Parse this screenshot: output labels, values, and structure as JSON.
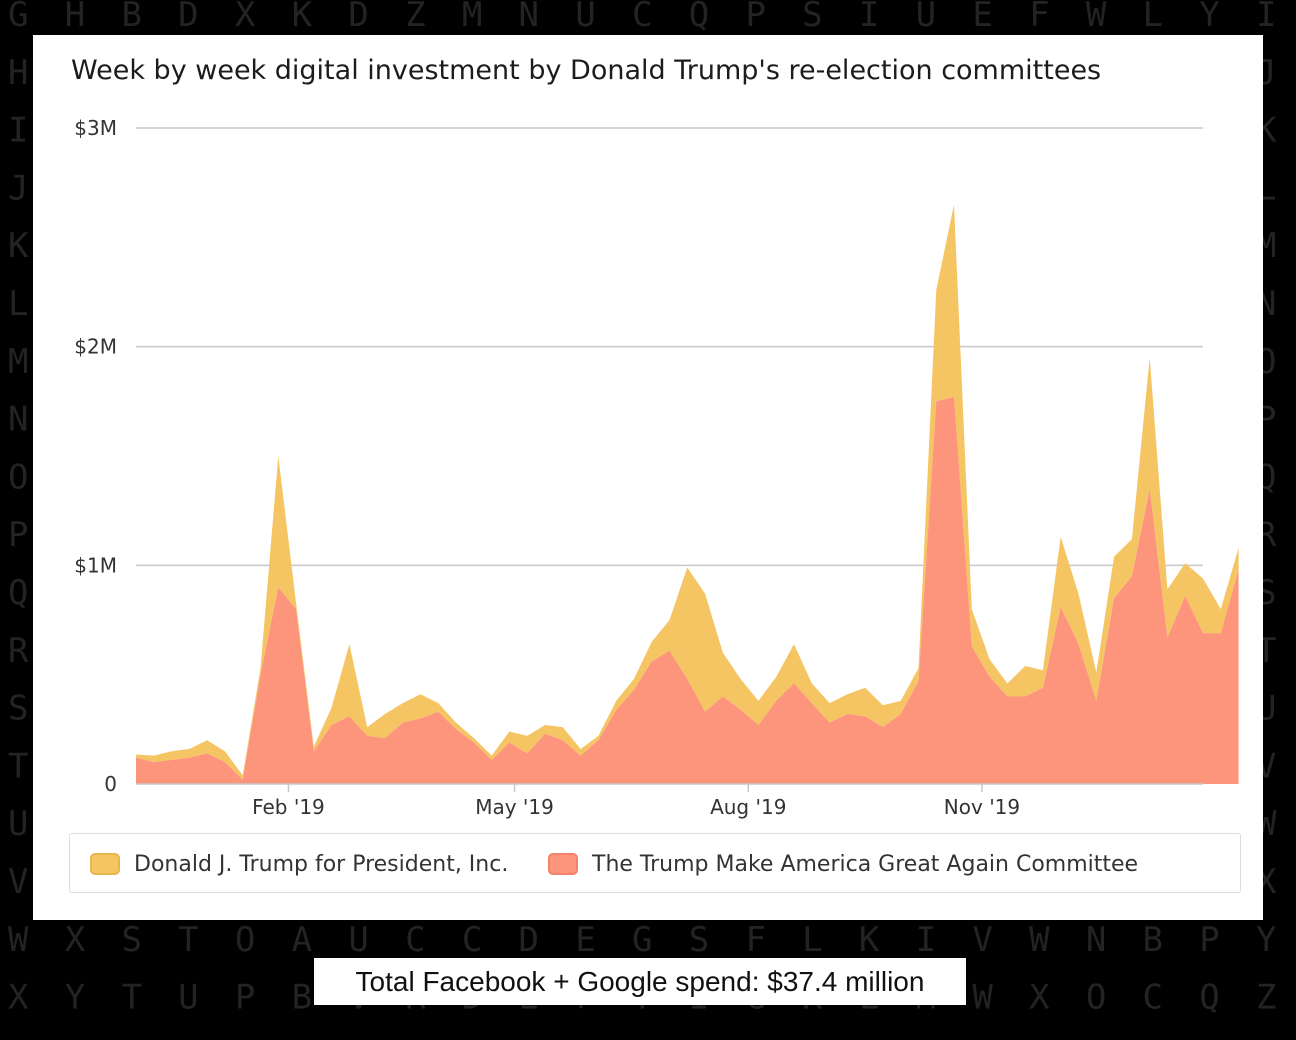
{
  "background_letters": [
    "GHBDXKDZMNUCQPSIUEFWLYI",
    "HJ",
    "IK",
    "JL",
    "KM",
    "LN",
    "MO",
    "NP",
    "OQ",
    "PR",
    "QS",
    "RT",
    "SU",
    "TV",
    "UW",
    "VX",
    "WXSTOAUCCDEGSFLKIVWNBPY",
    "XYTUPBVRDEFTIGKLMWXOCQZ"
  ],
  "caption": "Total Facebook + Google spend: $37.4 million",
  "chart_data": {
    "type": "area",
    "stacked": true,
    "title": "Week by week digital investment by Donald Trump's re-election committees",
    "x_unit": "week",
    "x_start": "2018-12-03",
    "x_end": "2020-01-27",
    "x_ticks": [
      {
        "label": "Feb '19",
        "date": "2019-02-01"
      },
      {
        "label": "May '19",
        "date": "2019-05-01"
      },
      {
        "label": "Aug '19",
        "date": "2019-08-01"
      },
      {
        "label": "Nov '19",
        "date": "2019-11-01"
      }
    ],
    "y_ticks": [
      {
        "label": "0",
        "value": 0
      },
      {
        "label": "$1M",
        "value": 1000000
      },
      {
        "label": "$2M",
        "value": 2000000
      },
      {
        "label": "$3M",
        "value": 3000000
      }
    ],
    "ylim": [
      0,
      3000000
    ],
    "grid": true,
    "legend_position": "bottom",
    "series": [
      {
        "name": "The Trump Make America Great Again Committee",
        "color": "#fd957d",
        "values": [
          120000,
          100000,
          110000,
          120000,
          140000,
          100000,
          20000,
          500000,
          900000,
          800000,
          150000,
          270000,
          310000,
          220000,
          210000,
          280000,
          300000,
          330000,
          250000,
          190000,
          110000,
          190000,
          140000,
          230000,
          200000,
          130000,
          200000,
          340000,
          430000,
          560000,
          610000,
          480000,
          330000,
          400000,
          340000,
          270000,
          380000,
          460000,
          370000,
          280000,
          320000,
          310000,
          260000,
          320000,
          470000,
          1750000,
          1770000,
          630000,
          490000,
          400000,
          400000,
          440000,
          810000,
          640000,
          380000,
          850000,
          950000,
          1350000,
          670000,
          860000,
          690000,
          690000,
          980000
        ]
      },
      {
        "name": "Donald J. Trump for President, Inc.",
        "color": "#f5c564",
        "values": [
          15000,
          30000,
          40000,
          40000,
          60000,
          50000,
          20000,
          30000,
          600000,
          30000,
          20000,
          80000,
          330000,
          40000,
          110000,
          90000,
          110000,
          40000,
          30000,
          20000,
          20000,
          50000,
          80000,
          40000,
          60000,
          30000,
          20000,
          40000,
          50000,
          90000,
          140000,
          510000,
          540000,
          200000,
          140000,
          110000,
          110000,
          180000,
          90000,
          90000,
          90000,
          130000,
          100000,
          60000,
          60000,
          510000,
          880000,
          170000,
          80000,
          60000,
          140000,
          80000,
          320000,
          230000,
          130000,
          190000,
          170000,
          600000,
          220000,
          150000,
          250000,
          110000,
          100000
        ]
      }
    ]
  }
}
